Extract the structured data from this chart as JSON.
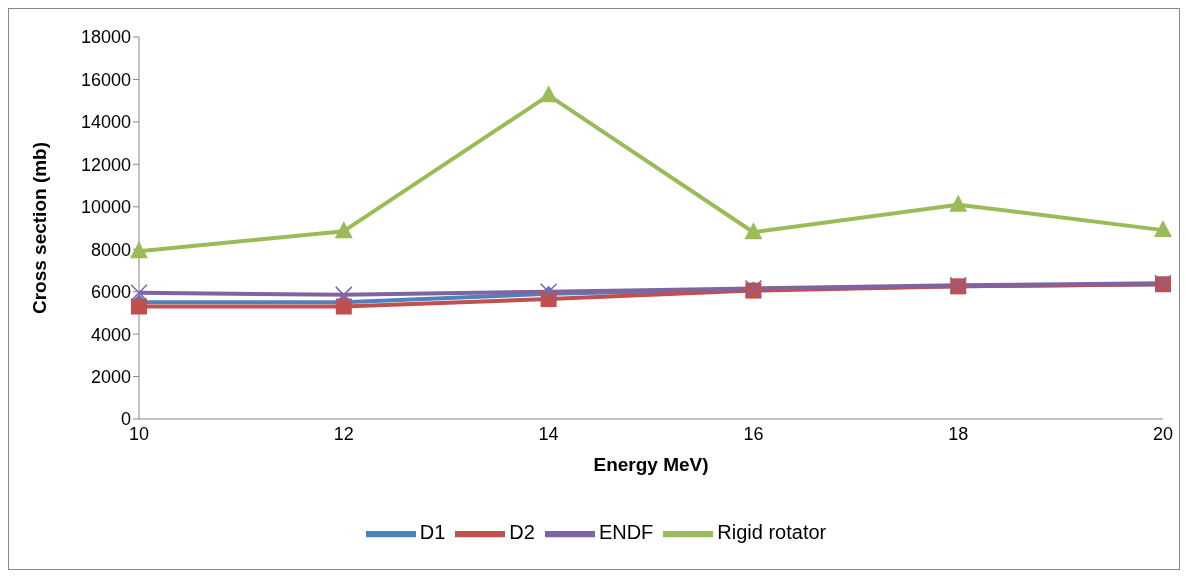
{
  "chart_data": {
    "type": "line",
    "xlabel": "Energy MeV)",
    "ylabel": "Cross section (mb)",
    "categories": [
      "10",
      "12",
      "14",
      "16",
      "18",
      "20"
    ],
    "series": [
      {
        "name": "D1",
        "color": "#4f81bd",
        "marker": "diamond",
        "values": [
          5500,
          5500,
          5900,
          6100,
          6250,
          6350
        ]
      },
      {
        "name": "D2",
        "color": "#c0504d",
        "marker": "square",
        "values": [
          5300,
          5300,
          5650,
          6050,
          6250,
          6350
        ]
      },
      {
        "name": "Rigid rotator",
        "color": "#9bbb59",
        "marker": "triangle",
        "values": [
          7900,
          8850,
          15250,
          8800,
          10100,
          8900
        ]
      },
      {
        "name": "ENDF",
        "color": "#8064a2",
        "marker": "cross",
        "values": [
          5950,
          5850,
          6000,
          6150,
          6300,
          6400
        ]
      }
    ],
    "ylim": [
      0,
      18000
    ],
    "yticks": [
      0,
      2000,
      4000,
      6000,
      8000,
      10000,
      12000,
      14000,
      16000,
      18000
    ],
    "grid": false,
    "legend": "bottom"
  }
}
